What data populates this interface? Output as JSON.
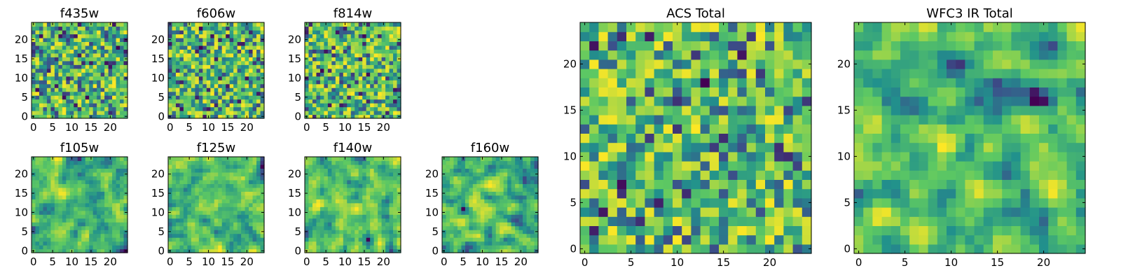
{
  "figure": {
    "colormap": "viridis",
    "colormap_stops": [
      "#440154",
      "#3b528b",
      "#21918c",
      "#5ec962",
      "#fde725"
    ],
    "background": "#ffffff",
    "frame_color": "#000000"
  },
  "chart_data": [
    {
      "type": "heatmap",
      "title": "f435w",
      "grid_size": 25,
      "xlim": [
        -0.5,
        24.5
      ],
      "ylim": [
        -0.5,
        24.5
      ],
      "xticks": [
        "0",
        "5",
        "10",
        "15",
        "20"
      ],
      "yticks": [
        "0",
        "5",
        "10",
        "15",
        "20"
      ],
      "origin": "lower",
      "texture": "fine-noise",
      "seed": 11,
      "values": []
    },
    {
      "type": "heatmap",
      "title": "f606w",
      "grid_size": 25,
      "xlim": [
        -0.5,
        24.5
      ],
      "ylim": [
        -0.5,
        24.5
      ],
      "xticks": [
        "0",
        "5",
        "10",
        "15",
        "20"
      ],
      "yticks": [
        "0",
        "5",
        "10",
        "15",
        "20"
      ],
      "origin": "lower",
      "texture": "fine-noise",
      "seed": 23,
      "values": []
    },
    {
      "type": "heatmap",
      "title": "f814w",
      "grid_size": 25,
      "xlim": [
        -0.5,
        24.5
      ],
      "ylim": [
        -0.5,
        24.5
      ],
      "xticks": [
        "0",
        "5",
        "10",
        "15",
        "20"
      ],
      "yticks": [
        "0",
        "5",
        "10",
        "15",
        "20"
      ],
      "origin": "lower",
      "texture": "fine-noise",
      "seed": 37,
      "values": []
    },
    {
      "type": "heatmap",
      "title": "f105w",
      "grid_size": 25,
      "xlim": [
        -0.5,
        24.5
      ],
      "ylim": [
        -0.5,
        24.5
      ],
      "xticks": [
        "0",
        "5",
        "10",
        "15",
        "20"
      ],
      "yticks": [
        "0",
        "5",
        "10",
        "15",
        "20"
      ],
      "origin": "lower",
      "texture": "smooth-noise",
      "seed": 41,
      "values": []
    },
    {
      "type": "heatmap",
      "title": "f125w",
      "grid_size": 25,
      "xlim": [
        -0.5,
        24.5
      ],
      "ylim": [
        -0.5,
        24.5
      ],
      "xticks": [
        "0",
        "5",
        "10",
        "15",
        "20"
      ],
      "yticks": [
        "0",
        "5",
        "10",
        "15",
        "20"
      ],
      "origin": "lower",
      "texture": "smooth-noise",
      "seed": 53,
      "values": []
    },
    {
      "type": "heatmap",
      "title": "f140w",
      "grid_size": 25,
      "xlim": [
        -0.5,
        24.5
      ],
      "ylim": [
        -0.5,
        24.5
      ],
      "xticks": [
        "0",
        "5",
        "10",
        "15",
        "20"
      ],
      "yticks": [
        "0",
        "5",
        "10",
        "15",
        "20"
      ],
      "origin": "lower",
      "texture": "smooth-noise",
      "seed": 67,
      "values": []
    },
    {
      "type": "heatmap",
      "title": "f160w",
      "grid_size": 25,
      "xlim": [
        -0.5,
        24.5
      ],
      "ylim": [
        -0.5,
        24.5
      ],
      "xticks": [
        "0",
        "5",
        "10",
        "15",
        "20"
      ],
      "yticks": [
        "0",
        "5",
        "10",
        "15",
        "20"
      ],
      "origin": "lower",
      "texture": "smooth-noise",
      "seed": 71,
      "values": []
    },
    {
      "type": "heatmap",
      "title": "ACS Total",
      "grid_size": 25,
      "xlim": [
        -0.5,
        24.5
      ],
      "ylim": [
        -0.5,
        24.5
      ],
      "xticks": [
        "0",
        "5",
        "10",
        "15",
        "20"
      ],
      "yticks": [
        "0",
        "5",
        "10",
        "15",
        "20"
      ],
      "origin": "lower",
      "texture": "fine-noise",
      "seed": 83,
      "values": []
    },
    {
      "type": "heatmap",
      "title": "WFC3 IR Total",
      "grid_size": 25,
      "xlim": [
        -0.5,
        24.5
      ],
      "ylim": [
        -0.5,
        24.5
      ],
      "xticks": [
        "0",
        "5",
        "10",
        "15",
        "20"
      ],
      "yticks": [
        "0",
        "5",
        "10",
        "15",
        "20"
      ],
      "origin": "lower",
      "texture": "smooth-noise",
      "seed": 97,
      "values": []
    }
  ]
}
